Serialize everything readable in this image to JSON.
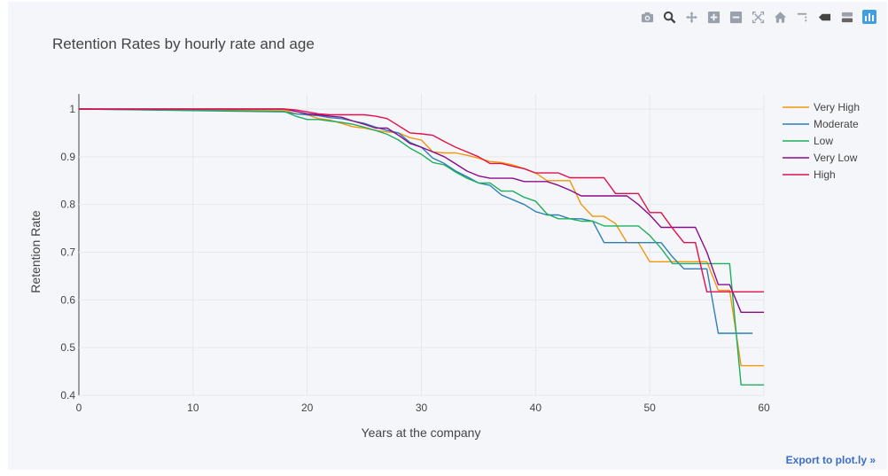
{
  "modebar": {
    "icons": [
      "camera-icon",
      "zoom-icon",
      "pan-icon",
      "zoom-in-icon",
      "zoom-out-icon",
      "autoscale-icon",
      "home-icon",
      "spike-icon",
      "hover-closest-icon",
      "hover-compare-icon",
      "plotly-logo-icon"
    ]
  },
  "export_label": "Export to plot.ly »",
  "chart_data": {
    "type": "line",
    "title": "Retention Rates by hourly rate and age",
    "xlabel": "Years at the company",
    "ylabel": "Retention Rate",
    "xlim": [
      0,
      60
    ],
    "ylim": [
      0.4,
      1.03
    ],
    "xticks": [
      0,
      10,
      20,
      30,
      40,
      50,
      60
    ],
    "yticks": [
      0.4,
      0.5,
      0.6,
      0.7,
      0.8,
      0.9,
      1
    ],
    "grid": true,
    "legend_position": "top-right",
    "series": [
      {
        "name": "Very High",
        "color": "#f2960c",
        "points": [
          [
            0,
            1
          ],
          [
            18,
            0.998
          ],
          [
            19,
            0.99
          ],
          [
            20,
            0.988
          ],
          [
            21,
            0.98
          ],
          [
            22,
            0.977
          ],
          [
            23,
            0.97
          ],
          [
            24,
            0.963
          ],
          [
            25,
            0.96
          ],
          [
            26,
            0.955
          ],
          [
            27,
            0.952
          ],
          [
            28,
            0.95
          ],
          [
            29,
            0.94
          ],
          [
            30,
            0.935
          ],
          [
            31,
            0.91
          ],
          [
            32,
            0.908
          ],
          [
            33,
            0.908
          ],
          [
            34,
            0.903
          ],
          [
            35,
            0.897
          ],
          [
            36,
            0.89
          ],
          [
            37,
            0.888
          ],
          [
            38,
            0.883
          ],
          [
            39,
            0.875
          ],
          [
            40,
            0.866
          ],
          [
            41,
            0.85
          ],
          [
            42,
            0.85
          ],
          [
            43,
            0.85
          ],
          [
            44,
            0.8
          ],
          [
            45,
            0.775
          ],
          [
            46,
            0.775
          ],
          [
            47,
            0.76
          ],
          [
            48,
            0.72
          ],
          [
            49,
            0.72
          ],
          [
            50,
            0.68
          ],
          [
            51,
            0.68
          ],
          [
            52,
            0.68
          ],
          [
            53,
            0.68
          ],
          [
            54,
            0.68
          ],
          [
            55,
            0.68
          ],
          [
            56,
            0.62
          ],
          [
            57,
            0.62
          ],
          [
            58,
            0.462
          ],
          [
            59,
            0.462
          ],
          [
            60,
            0.462
          ]
        ]
      },
      {
        "name": "Moderate",
        "color": "#2c7fb8",
        "points": [
          [
            0,
            1
          ],
          [
            18,
            0.994
          ],
          [
            19,
            0.99
          ],
          [
            20,
            0.988
          ],
          [
            21,
            0.986
          ],
          [
            22,
            0.982
          ],
          [
            23,
            0.98
          ],
          [
            24,
            0.975
          ],
          [
            25,
            0.97
          ],
          [
            26,
            0.962
          ],
          [
            27,
            0.955
          ],
          [
            28,
            0.95
          ],
          [
            29,
            0.93
          ],
          [
            30,
            0.92
          ],
          [
            31,
            0.897
          ],
          [
            32,
            0.886
          ],
          [
            33,
            0.87
          ],
          [
            34,
            0.858
          ],
          [
            35,
            0.845
          ],
          [
            36,
            0.84
          ],
          [
            37,
            0.82
          ],
          [
            38,
            0.81
          ],
          [
            39,
            0.8
          ],
          [
            40,
            0.785
          ],
          [
            41,
            0.778
          ],
          [
            42,
            0.778
          ],
          [
            43,
            0.77
          ],
          [
            44,
            0.77
          ],
          [
            45,
            0.765
          ],
          [
            46,
            0.72
          ],
          [
            47,
            0.72
          ],
          [
            48,
            0.72
          ],
          [
            49,
            0.72
          ],
          [
            50,
            0.72
          ],
          [
            51,
            0.72
          ],
          [
            52,
            0.69
          ],
          [
            53,
            0.665
          ],
          [
            54,
            0.665
          ],
          [
            55,
            0.665
          ],
          [
            56,
            0.53
          ],
          [
            57,
            0.53
          ],
          [
            58,
            0.53
          ],
          [
            59,
            0.53
          ]
        ]
      },
      {
        "name": "Low",
        "color": "#1fae5b",
        "points": [
          [
            0,
            1
          ],
          [
            18,
            0.995
          ],
          [
            19,
            0.985
          ],
          [
            20,
            0.978
          ],
          [
            21,
            0.978
          ],
          [
            22,
            0.975
          ],
          [
            23,
            0.972
          ],
          [
            24,
            0.968
          ],
          [
            25,
            0.962
          ],
          [
            26,
            0.955
          ],
          [
            27,
            0.947
          ],
          [
            28,
            0.935
          ],
          [
            29,
            0.918
          ],
          [
            30,
            0.905
          ],
          [
            31,
            0.888
          ],
          [
            32,
            0.883
          ],
          [
            33,
            0.868
          ],
          [
            34,
            0.855
          ],
          [
            35,
            0.845
          ],
          [
            36,
            0.845
          ],
          [
            37,
            0.828
          ],
          [
            38,
            0.828
          ],
          [
            39,
            0.815
          ],
          [
            40,
            0.807
          ],
          [
            41,
            0.78
          ],
          [
            42,
            0.77
          ],
          [
            43,
            0.77
          ],
          [
            44,
            0.765
          ],
          [
            45,
            0.765
          ],
          [
            46,
            0.755
          ],
          [
            47,
            0.755
          ],
          [
            48,
            0.755
          ],
          [
            49,
            0.755
          ],
          [
            50,
            0.735
          ],
          [
            51,
            0.708
          ],
          [
            52,
            0.676
          ],
          [
            53,
            0.676
          ],
          [
            54,
            0.676
          ],
          [
            55,
            0.676
          ],
          [
            56,
            0.676
          ],
          [
            57,
            0.676
          ],
          [
            58,
            0.422
          ],
          [
            59,
            0.422
          ],
          [
            60,
            0.422
          ]
        ]
      },
      {
        "name": "Very Low",
        "color": "#8a0c8a",
        "points": [
          [
            0,
            1
          ],
          [
            18,
            1
          ],
          [
            19,
            0.995
          ],
          [
            20,
            0.99
          ],
          [
            21,
            0.988
          ],
          [
            22,
            0.985
          ],
          [
            23,
            0.983
          ],
          [
            24,
            0.975
          ],
          [
            25,
            0.968
          ],
          [
            26,
            0.96
          ],
          [
            27,
            0.96
          ],
          [
            28,
            0.945
          ],
          [
            29,
            0.928
          ],
          [
            30,
            0.92
          ],
          [
            31,
            0.91
          ],
          [
            32,
            0.9
          ],
          [
            33,
            0.885
          ],
          [
            34,
            0.87
          ],
          [
            35,
            0.86
          ],
          [
            36,
            0.855
          ],
          [
            37,
            0.855
          ],
          [
            38,
            0.855
          ],
          [
            39,
            0.848
          ],
          [
            40,
            0.848
          ],
          [
            41,
            0.848
          ],
          [
            42,
            0.84
          ],
          [
            43,
            0.83
          ],
          [
            44,
            0.818
          ],
          [
            45,
            0.818
          ],
          [
            46,
            0.818
          ],
          [
            47,
            0.818
          ],
          [
            48,
            0.818
          ],
          [
            49,
            0.8
          ],
          [
            50,
            0.778
          ],
          [
            51,
            0.752
          ],
          [
            52,
            0.752
          ],
          [
            53,
            0.752
          ],
          [
            54,
            0.752
          ],
          [
            55,
            0.7
          ],
          [
            56,
            0.632
          ],
          [
            57,
            0.632
          ],
          [
            58,
            0.574
          ],
          [
            59,
            0.574
          ],
          [
            60,
            0.574
          ]
        ]
      },
      {
        "name": "High",
        "color": "#e0114b",
        "points": [
          [
            0,
            1
          ],
          [
            18,
            1
          ],
          [
            19,
            0.998
          ],
          [
            20,
            0.994
          ],
          [
            21,
            0.99
          ],
          [
            22,
            0.988
          ],
          [
            23,
            0.988
          ],
          [
            24,
            0.988
          ],
          [
            25,
            0.988
          ],
          [
            26,
            0.985
          ],
          [
            27,
            0.98
          ],
          [
            28,
            0.965
          ],
          [
            29,
            0.95
          ],
          [
            30,
            0.948
          ],
          [
            31,
            0.945
          ],
          [
            32,
            0.932
          ],
          [
            33,
            0.92
          ],
          [
            34,
            0.91
          ],
          [
            35,
            0.9
          ],
          [
            36,
            0.886
          ],
          [
            37,
            0.886
          ],
          [
            38,
            0.88
          ],
          [
            39,
            0.875
          ],
          [
            40,
            0.866
          ],
          [
            41,
            0.866
          ],
          [
            42,
            0.866
          ],
          [
            43,
            0.856
          ],
          [
            44,
            0.856
          ],
          [
            45,
            0.856
          ],
          [
            46,
            0.856
          ],
          [
            47,
            0.823
          ],
          [
            48,
            0.823
          ],
          [
            49,
            0.823
          ],
          [
            50,
            0.783
          ],
          [
            51,
            0.783
          ],
          [
            52,
            0.75
          ],
          [
            53,
            0.72
          ],
          [
            54,
            0.72
          ],
          [
            55,
            0.617
          ],
          [
            56,
            0.617
          ],
          [
            57,
            0.617
          ],
          [
            58,
            0.617
          ],
          [
            59,
            0.617
          ],
          [
            60,
            0.617
          ]
        ]
      }
    ]
  }
}
